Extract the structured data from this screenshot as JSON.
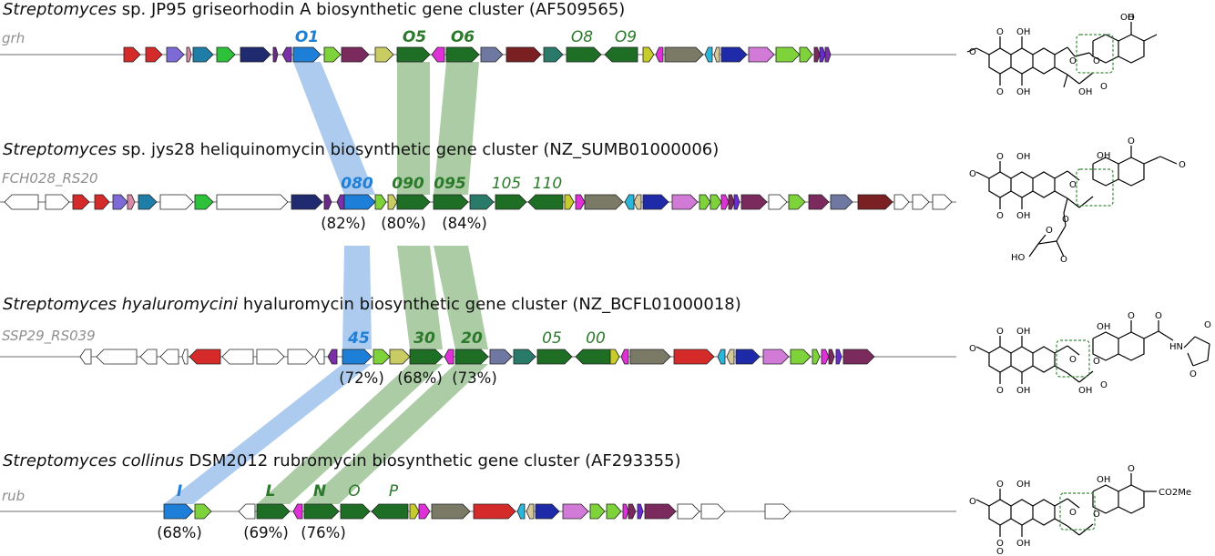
{
  "colors": {
    "backbone": "#8a8a8a",
    "link_blue": "#a9c8ee",
    "link_green": "#a8c9a0",
    "label_blue": "#1e7fd8",
    "label_green": "#2b7a2b",
    "prefix_gray": "#8f8f8f",
    "gene_stroke": "#222222"
  },
  "clusters": [
    {
      "species_italic": "Streptomyces",
      "title_rest": " sp. JP95 griseorhodin A biosynthetic gene cluster (AF509565)",
      "prefix": "grh",
      "labels": [
        {
          "text": "O1",
          "bold": true,
          "color": "blue"
        },
        {
          "text": "O5",
          "bold": true,
          "color": "green"
        },
        {
          "text": "O6",
          "bold": true,
          "color": "green"
        },
        {
          "text": "O8",
          "bold": false,
          "color": "green"
        },
        {
          "text": "O9",
          "bold": false,
          "color": "green"
        }
      ],
      "percents": []
    },
    {
      "species_italic": "Streptomyces",
      "title_rest": " sp. jys28 heliquinomycin biosynthetic gene cluster (NZ_SUMB01000006)",
      "prefix": "FCH028_RS20",
      "labels": [
        {
          "text": "080",
          "bold": true,
          "color": "blue"
        },
        {
          "text": "090",
          "bold": true,
          "color": "green"
        },
        {
          "text": "095",
          "bold": true,
          "color": "green"
        },
        {
          "text": "105",
          "bold": false,
          "color": "green"
        },
        {
          "text": "110",
          "bold": false,
          "color": "green"
        }
      ],
      "percents": [
        "(82%)",
        "(80%)",
        "(84%)"
      ]
    },
    {
      "species_italic": "Streptomyces hyaluromycini",
      "title_rest": " hyaluromycin biosynthetic gene cluster (NZ_BCFL01000018)",
      "prefix": "SSP29_RS039",
      "labels": [
        {
          "text": "45",
          "bold": true,
          "color": "blue"
        },
        {
          "text": "30",
          "bold": true,
          "color": "green"
        },
        {
          "text": "20",
          "bold": true,
          "color": "green"
        },
        {
          "text": "05",
          "bold": false,
          "color": "green"
        },
        {
          "text": "00",
          "bold": false,
          "color": "green"
        }
      ],
      "percents": [
        "(72%)",
        "(68%)",
        "(73%)"
      ]
    },
    {
      "species_italic": "Streptomyces collinus",
      "title_rest": " DSM2012 rubromycin biosynthetic gene cluster (AF293355)",
      "prefix": "rub",
      "labels": [
        {
          "text": "I",
          "bold": true,
          "color": "blue"
        },
        {
          "text": "L",
          "bold": true,
          "color": "green"
        },
        {
          "text": "N",
          "bold": true,
          "color": "green"
        },
        {
          "text": "O",
          "bold": false,
          "color": "green"
        },
        {
          "text": "P",
          "bold": false,
          "color": "green"
        }
      ],
      "percents": [
        "(68%)",
        "(69%)",
        "(76%)"
      ]
    }
  ],
  "structures": [
    {
      "atoms": [
        "O",
        "O",
        "OH",
        "O",
        "OH",
        "O",
        "O",
        "O",
        "OH",
        "OH",
        "O"
      ]
    },
    {
      "atoms": [
        "OH",
        "O",
        "O",
        "O",
        "O",
        "OH",
        "O",
        "O",
        "OH",
        "O",
        "O",
        "HO",
        "O"
      ]
    },
    {
      "atoms": [
        "O",
        "OH",
        "O",
        "O",
        "OH",
        "O",
        "O",
        "O",
        "OH",
        "OH",
        "O",
        "O",
        "HN",
        "O",
        "O"
      ]
    },
    {
      "atoms": [
        "O",
        "OH",
        "O",
        "CO2Me",
        "O",
        "OH",
        "O",
        "O",
        "O",
        "OH",
        "O"
      ]
    }
  ]
}
